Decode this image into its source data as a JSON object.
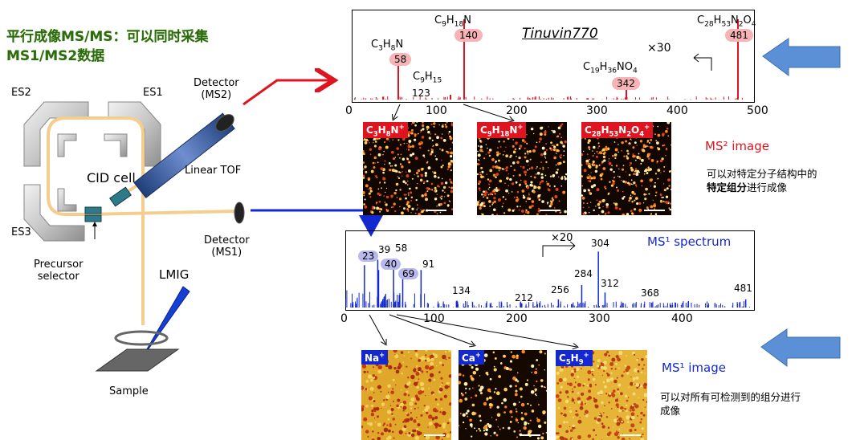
{
  "title_line1": "平行成像MS/MS：可以同时采集",
  "title_line2": "MS1/MS2数据",
  "instrument": {
    "es1": "ES1",
    "es2": "ES2",
    "es3": "ES3",
    "cid_cell": "CID cell",
    "linear_tof": "Linear TOF",
    "detector_ms2_line1": "Detector",
    "detector_ms2_line2": "(MS2)",
    "detector_ms1_line1": "Detector",
    "detector_ms1_line2": "(MS1)",
    "precursor_line1": "Precursor",
    "precursor_line2": "selector",
    "lmig": "LMIG",
    "sample": "Sample"
  },
  "ms2_chart": {
    "title": "Tinuvin770",
    "zoom": "×30",
    "x_ticks": [
      "0",
      "100",
      "200",
      "300",
      "400",
      "500"
    ],
    "peak_labels": [
      {
        "formula_html": "C<sub>3</sub>H<sub>8</sub>N",
        "mz": "58"
      },
      {
        "formula_html": "C<sub>9</sub>H<sub>15</sub>",
        "mz": "123"
      },
      {
        "formula_html": "C<sub>9</sub>H<sub>18</sub>N",
        "mz": "140"
      },
      {
        "formula_html": "C<sub>19</sub>H<sub>36</sub>NO<sub>4</sub>",
        "mz": "342"
      },
      {
        "formula_html": "C<sub>28</sub>H<sub>53</sub>N<sub>2</sub>O<sub>4</sub>",
        "mz": "481"
      }
    ]
  },
  "ms1_chart": {
    "title": "MS¹ spectrum",
    "zoom": "×20",
    "x_ticks": [
      "0",
      "100",
      "200",
      "300",
      "400"
    ],
    "peak_labels": [
      "23",
      "39",
      "40",
      "58",
      "69",
      "91",
      "134",
      "212",
      "256",
      "284",
      "304",
      "312",
      "368",
      "481"
    ]
  },
  "chart_data": [
    {
      "type": "bar",
      "title": "Tinuvin770",
      "xlim": [
        0,
        500
      ],
      "x": [
        58,
        123,
        140,
        342,
        481
      ],
      "values": [
        0.55,
        0.06,
        1.0,
        0.2,
        1.0
      ]
    },
    {
      "type": "bar",
      "title": "MS¹ spectrum",
      "xlim": [
        0,
        490
      ],
      "x": [
        23,
        39,
        40,
        58,
        69,
        91,
        134,
        212,
        256,
        284,
        304,
        312,
        368,
        481
      ],
      "values": [
        0.62,
        0.7,
        0.55,
        0.7,
        0.42,
        0.55,
        0.1,
        0.06,
        0.12,
        0.33,
        0.82,
        0.22,
        0.07,
        0.12
      ]
    }
  ],
  "ms2_images": [
    {
      "label_html": "C<sub>3</sub>H<sub>8</sub>N<sup>+</sup>"
    },
    {
      "label_html": "C<sub>9</sub>H<sub>18</sub>N<sup>+</sup>"
    },
    {
      "label_html": "C<sub>28</sub>H<sub>53</sub>N<sub>2</sub>O<sub>4</sub><sup>+</sup>"
    }
  ],
  "ms1_images": [
    {
      "label_html": "Na<sup>+</sup>"
    },
    {
      "label_html": "Ca<sup>+</sup>"
    },
    {
      "label_html": "C<sub>5</sub>H<sub>9</sub><sup>+</sup>"
    }
  ],
  "ms2_image_label": "MS² image",
  "ms2_desc_line1": "可以对特定分子结构中的",
  "ms2_desc_bold": "特定组分",
  "ms2_desc_rest": "进行成像",
  "ms1_image_label": "MS¹ image",
  "ms1_desc_line1": "可以对所有可检测到的组分进行",
  "ms1_desc_line2": "成像",
  "colors": {
    "ms2": "#e0141e",
    "ms1": "#1428d2",
    "arrow_fill": "#5b8fd6",
    "title": "#2d6a12"
  }
}
